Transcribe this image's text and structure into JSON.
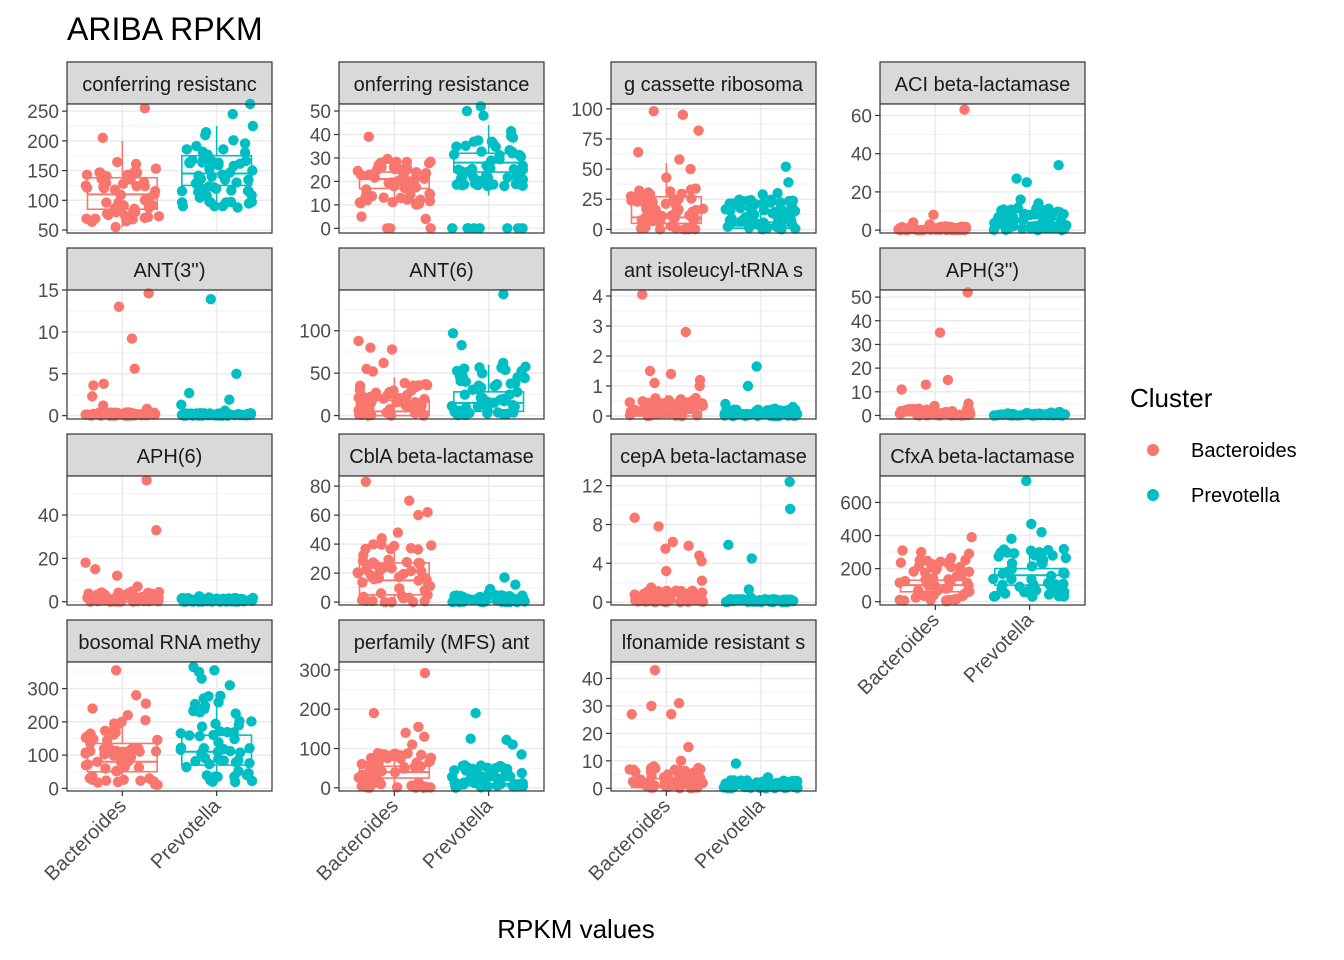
{
  "chart_data": {
    "type": "box-jitter",
    "title": "ARIBA RPKM",
    "xlabel": "RPKM values",
    "ylabel": "",
    "categories": [
      "Bacteroides",
      "Prevotella"
    ],
    "legend": {
      "title": "Cluster",
      "position": "right",
      "entries": [
        {
          "name": "Bacteroides",
          "color": "#f8766d"
        },
        {
          "name": "Prevotella",
          "color": "#00bfc4"
        }
      ]
    },
    "grid": true,
    "panels": [
      {
        "strip": "conferring resistanc",
        "ylim": [
          45,
          262
        ],
        "ticks": [
          50,
          100,
          150,
          200,
          250
        ],
        "box": {
          "Bacteroides": [
            55,
            85,
            110,
            138,
            200
          ],
          "Prevotella": [
            90,
            125,
            145,
            175,
            225
          ]
        },
        "outliers": {
          "Bacteroides": [
            205,
            255,
            55
          ],
          "Prevotella": [
            265,
            245,
            225,
            88
          ]
        },
        "spread": {
          "Bacteroides": [
            60,
            165
          ],
          "Prevotella": [
            90,
            215
          ]
        }
      },
      {
        "strip": "onferring resistance",
        "ylim": [
          -2,
          53
        ],
        "ticks": [
          0,
          10,
          20,
          30,
          40,
          50
        ],
        "box": {
          "Bacteroides": [
            10,
            17,
            21,
            24,
            30
          ],
          "Prevotella": [
            14,
            24,
            28,
            32,
            44
          ]
        },
        "outliers": {
          "Bacteroides": [
            39,
            0,
            0,
            0,
            5,
            4
          ],
          "Prevotella": [
            0,
            0,
            0,
            0,
            0,
            0,
            0,
            0,
            48,
            50,
            52
          ]
        },
        "spread": {
          "Bacteroides": [
            10,
            31
          ],
          "Prevotella": [
            18,
            42
          ]
        }
      },
      {
        "strip": "g cassette ribosoma",
        "ylim": [
          -3,
          104
        ],
        "ticks": [
          0,
          25,
          50,
          75,
          100
        ],
        "box": {
          "Bacteroides": [
            0,
            5,
            10,
            27,
            55
          ],
          "Prevotella": [
            0,
            1,
            3,
            6,
            15
          ]
        },
        "outliers": {
          "Bacteroides": [
            82,
            95,
            98,
            64,
            58,
            50,
            43
          ],
          "Prevotella": [
            52,
            39,
            30,
            29
          ]
        },
        "spread": {
          "Bacteroides": [
            0,
            35
          ],
          "Prevotella": [
            0,
            25
          ]
        }
      },
      {
        "strip": "ACI beta-lactamase",
        "ylim": [
          -1.5,
          66
        ],
        "ticks": [
          0,
          20,
          40,
          60
        ],
        "box": {
          "Bacteroides": [
            0,
            0,
            0,
            0.5,
            1
          ],
          "Prevotella": [
            0,
            2,
            4,
            6,
            10
          ]
        },
        "outliers": {
          "Bacteroides": [
            63,
            8,
            4,
            3,
            2
          ],
          "Prevotella": [
            34,
            27,
            25,
            16,
            14
          ]
        },
        "spread": {
          "Bacteroides": [
            0,
            2
          ],
          "Prevotella": [
            0,
            12
          ]
        }
      },
      {
        "strip": "ANT(3'')",
        "ylim": [
          -0.4,
          15
        ],
        "ticks": [
          0,
          5,
          10,
          15
        ],
        "box": {
          "Bacteroides": [
            0,
            0,
            0,
            0,
            0
          ],
          "Prevotella": [
            0,
            0,
            0,
            0,
            0
          ]
        },
        "outliers": {
          "Bacteroides": [
            14.6,
            13,
            9.2,
            5.6,
            3.8,
            3.6,
            2.3,
            1.2,
            0.8
          ],
          "Prevotella": [
            13.9,
            5,
            2.7,
            1.9,
            1.3,
            0.6
          ]
        },
        "spread": {
          "Bacteroides": [
            0,
            0.4
          ],
          "Prevotella": [
            0,
            0.3
          ]
        }
      },
      {
        "strip": "ANT(6)",
        "ylim": [
          -4,
          148
        ],
        "ticks": [
          0,
          50,
          100
        ],
        "box": {
          "Bacteroides": [
            0,
            0,
            5,
            18,
            45
          ],
          "Prevotella": [
            0,
            5,
            15,
            28,
            60
          ]
        },
        "outliers": {
          "Bacteroides": [
            88,
            80,
            78,
            62,
            55,
            52
          ],
          "Prevotella": [
            143,
            97,
            83,
            62
          ]
        },
        "spread": {
          "Bacteroides": [
            0,
            40
          ],
          "Prevotella": [
            0,
            58
          ]
        }
      },
      {
        "strip": "ant isoleucyl-tRNA s",
        "ylim": [
          -0.1,
          4.2
        ],
        "ticks": [
          0,
          1,
          2,
          3,
          4
        ],
        "box": {
          "Bacteroides": [
            0,
            0,
            0.1,
            0.3,
            0.7
          ],
          "Prevotella": [
            0,
            0,
            0,
            0.1,
            0.2
          ]
        },
        "outliers": {
          "Bacteroides": [
            4.05,
            2.8,
            1.5,
            1.4,
            1.2,
            1.1,
            1.0
          ],
          "Prevotella": [
            1.65,
            1.0,
            0.4,
            0.3
          ]
        },
        "spread": {
          "Bacteroides": [
            0,
            0.6
          ],
          "Prevotella": [
            0,
            0.25
          ]
        }
      },
      {
        "strip": "APH(3'')",
        "ylim": [
          -1.5,
          53
        ],
        "ticks": [
          0,
          10,
          20,
          30,
          40,
          50
        ],
        "box": {
          "Bacteroides": [
            0,
            0,
            0,
            0.8,
            2
          ],
          "Prevotella": [
            0,
            0,
            0,
            0.2,
            0.5
          ]
        },
        "outliers": {
          "Bacteroides": [
            52,
            35,
            15,
            13,
            11,
            5,
            4
          ],
          "Prevotella": [
            1.5,
            1.2
          ]
        },
        "spread": {
          "Bacteroides": [
            0,
            3
          ],
          "Prevotella": [
            0,
            1
          ]
        }
      },
      {
        "strip": "APH(6)",
        "ylim": [
          -1.5,
          58
        ],
        "ticks": [
          0,
          20,
          40
        ],
        "box": {
          "Bacteroides": [
            0,
            0,
            0,
            1,
            2
          ],
          "Prevotella": [
            0,
            0,
            0,
            0.5,
            1
          ]
        },
        "outliers": {
          "Bacteroides": [
            56,
            33,
            18,
            15,
            12,
            7
          ],
          "Prevotella": [
            2.5,
            2
          ]
        },
        "spread": {
          "Bacteroides": [
            0,
            5
          ],
          "Prevotella": [
            0,
            2
          ]
        }
      },
      {
        "strip": "CblA beta-lactamase",
        "ylim": [
          -2,
          87
        ],
        "ticks": [
          0,
          20,
          40,
          60,
          80
        ],
        "box": {
          "Bacteroides": [
            0,
            5,
            15,
            27,
            40
          ],
          "Prevotella": [
            0,
            0,
            0,
            2,
            5
          ]
        },
        "outliers": {
          "Bacteroides": [
            83,
            70,
            62,
            60,
            48,
            44
          ],
          "Prevotella": [
            17,
            12,
            9,
            6
          ]
        },
        "spread": {
          "Bacteroides": [
            0,
            40
          ],
          "Prevotella": [
            0,
            5
          ]
        }
      },
      {
        "strip": "cepA beta-lactamase",
        "ylim": [
          -0.3,
          13
        ],
        "ticks": [
          0,
          4,
          8,
          12
        ],
        "box": {
          "Bacteroides": [
            0,
            0,
            0,
            0.6,
            1.5
          ],
          "Prevotella": [
            0,
            0,
            0,
            0,
            0
          ]
        },
        "outliers": {
          "Bacteroides": [
            8.7,
            7.8,
            6.2,
            5.8,
            5.5,
            4.8,
            4.2,
            3.2,
            2.2,
            1.5
          ],
          "Prevotella": [
            12.4,
            9.6,
            5.9,
            4.5,
            1.3,
            0.5
          ]
        },
        "spread": {
          "Bacteroides": [
            0,
            1.2
          ],
          "Prevotella": [
            0,
            0.3
          ]
        }
      },
      {
        "strip": "CfxA beta-lactamase",
        "ylim": [
          -20,
          760
        ],
        "ticks": [
          0,
          200,
          400,
          600
        ],
        "box": {
          "Bacteroides": [
            20,
            60,
            100,
            130,
            200
          ],
          "Prevotella": [
            40,
            100,
            160,
            200,
            330
          ]
        },
        "outliers": {
          "Bacteroides": [
            390,
            310,
            300,
            290,
            265
          ],
          "Prevotella": [
            730,
            470,
            420,
            380
          ]
        },
        "spread": {
          "Bacteroides": [
            0,
            260
          ],
          "Prevotella": [
            30,
            330
          ]
        }
      },
      {
        "strip": "bosomal RNA methy",
        "ylim": [
          -8,
          380
        ],
        "ticks": [
          0,
          100,
          200,
          300
        ],
        "box": {
          "Bacteroides": [
            15,
            50,
            80,
            135,
            195
          ],
          "Prevotella": [
            20,
            70,
            110,
            160,
            270
          ]
        },
        "outliers": {
          "Bacteroides": [
            355,
            280,
            255,
            240,
            220,
            205
          ],
          "Prevotella": [
            365,
            355,
            350,
            330,
            310
          ]
        },
        "spread": {
          "Bacteroides": [
            10,
            200
          ],
          "Prevotella": [
            15,
            280
          ]
        }
      },
      {
        "strip": "perfamily (MFS) ant",
        "ylim": [
          -8,
          320
        ],
        "ticks": [
          0,
          100,
          200,
          300
        ],
        "box": {
          "Bacteroides": [
            5,
            25,
            40,
            55,
            85
          ],
          "Prevotella": [
            0,
            5,
            10,
            20,
            40
          ]
        },
        "outliers": {
          "Bacteroides": [
            292,
            190,
            155,
            140,
            130,
            110
          ],
          "Prevotella": [
            190,
            125,
            122,
            110,
            85
          ]
        },
        "spread": {
          "Bacteroides": [
            0,
            95
          ],
          "Prevotella": [
            0,
            60
          ]
        }
      },
      {
        "strip": "lfonamide resistant s",
        "ylim": [
          -1,
          46
        ],
        "ticks": [
          0,
          10,
          20,
          30,
          40
        ],
        "box": {
          "Bacteroides": [
            0,
            0.3,
            1,
            3.5,
            7
          ],
          "Prevotella": [
            0,
            0,
            0.2,
            0.8,
            2
          ]
        },
        "outliers": {
          "Bacteroides": [
            43,
            31,
            30,
            27,
            27,
            15,
            10
          ],
          "Prevotella": [
            9,
            4,
            3
          ]
        },
        "spread": {
          "Bacteroides": [
            0,
            8
          ],
          "Prevotella": [
            0,
            3
          ]
        }
      }
    ]
  }
}
